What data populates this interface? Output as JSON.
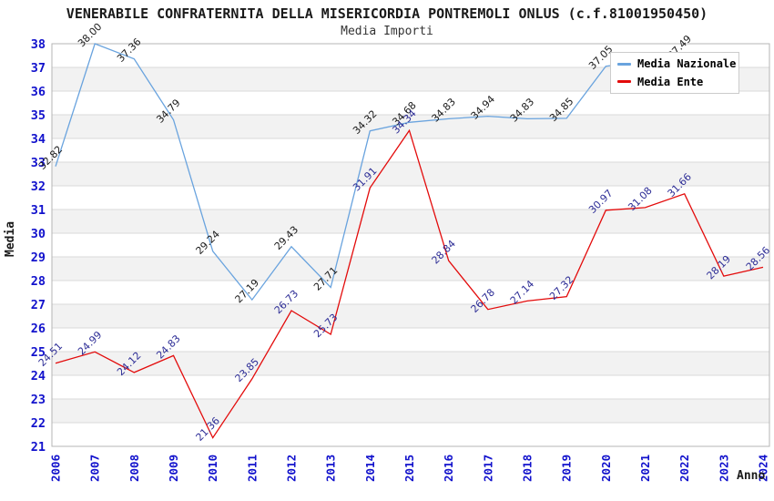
{
  "title": "VENERABILE CONFRATERNITA DELLA MISERICORDIA PONTREMOLI ONLUS (c.f.81001950450)",
  "subtitle": "Media Importi",
  "chart_data": {
    "type": "line",
    "x": [
      2006,
      2007,
      2008,
      2009,
      2010,
      2011,
      2012,
      2013,
      2014,
      2015,
      2016,
      2017,
      2018,
      2019,
      2020,
      2021,
      2022,
      2023,
      2024
    ],
    "xlabel": "Anno",
    "ylabel": "Media",
    "ylim": [
      21,
      38
    ],
    "y_tick_step": 1,
    "grid": true,
    "legend_position": "top-right",
    "series": [
      {
        "name": "Media Nazionale",
        "color": "#69a3de",
        "label_color": "#1a1a1a",
        "values": [
          32.82,
          38.0,
          37.36,
          34.79,
          29.24,
          27.19,
          29.43,
          27.71,
          34.32,
          34.68,
          34.83,
          34.94,
          34.83,
          34.85,
          37.05,
          null,
          37.49,
          null,
          null
        ]
      },
      {
        "name": "Media Ente",
        "color": "#e30b0b",
        "label_color": "#2d2d96",
        "values": [
          24.51,
          24.99,
          24.12,
          24.83,
          21.36,
          23.85,
          26.73,
          25.73,
          31.91,
          34.34,
          28.84,
          26.78,
          27.14,
          27.32,
          30.97,
          31.08,
          31.66,
          28.19,
          28.56
        ]
      }
    ],
    "style": {
      "tick_color": "#1111cc",
      "stripe_color": "#f2f2f2",
      "grid_color": "#d9d9d9",
      "border_color": "#b5b5b5"
    }
  }
}
